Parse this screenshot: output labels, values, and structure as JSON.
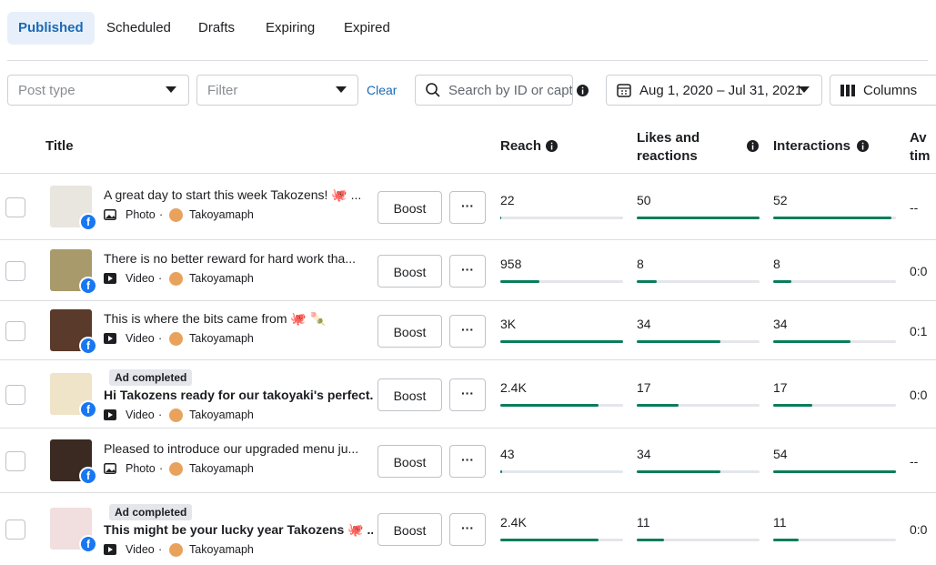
{
  "tabs": [
    "Published",
    "Scheduled",
    "Drafts",
    "Expiring",
    "Expired"
  ],
  "filters": {
    "post_type": "Post type",
    "filter": "Filter",
    "clear": "Clear",
    "search": "Search by ID or capt",
    "date_range": "Aug 1, 2020 – Jul 31, 2021",
    "columns": "Columns"
  },
  "table": {
    "headers": {
      "title": "Title",
      "reach": "Reach",
      "likes": "Likes and reactions",
      "interactions": "Interactions",
      "avg_time": "Av tim"
    },
    "rows": [
      {
        "title": "A great day to start this week Takozens! 🐙 ...",
        "media": "Photo",
        "page": "Takoyamaph",
        "boost": "Boost",
        "reach": 22,
        "likes": 50,
        "interactions": 52,
        "avg_time": "--"
      },
      {
        "title": "There is no better reward for hard work tha...",
        "media": "Video",
        "page": "Takoyamaph",
        "boost": "Boost",
        "reach": 958,
        "likes": 8,
        "interactions": 8,
        "avg_time": "0:0"
      },
      {
        "title": "This is where the bits came from 🐙 🍡",
        "media": "Video",
        "page": "Takoyamaph",
        "boost": "Boost",
        "reach": {
          "value": 3000,
          "label": "3K"
        },
        "likes": 34,
        "interactions": 34,
        "avg_time": "0:1"
      },
      {
        "badge": "Ad completed",
        "title": "Hi Takozens ready for our takoyaki's perfect...",
        "media": "Video",
        "page": "Takoyamaph",
        "boost": "Boost",
        "reach": {
          "value": 2400,
          "label": "2.4K"
        },
        "likes": 17,
        "interactions": 17,
        "avg_time": "0:0"
      },
      {
        "title": "Pleased to introduce our upgraded menu ju...",
        "media": "Photo",
        "page": "Takoyamaph",
        "boost": "Boost",
        "reach": 43,
        "likes": 34,
        "interactions": 54,
        "avg_time": "--"
      },
      {
        "badge": "Ad completed",
        "title": "This might be your lucky year Takozens 🐙 ...",
        "media": "Video",
        "page": "Takoyamaph",
        "boost": "Boost",
        "reach": {
          "value": 2400,
          "label": "2.4K"
        },
        "likes": 11,
        "interactions": 11,
        "avg_time": "0:0"
      }
    ]
  }
}
